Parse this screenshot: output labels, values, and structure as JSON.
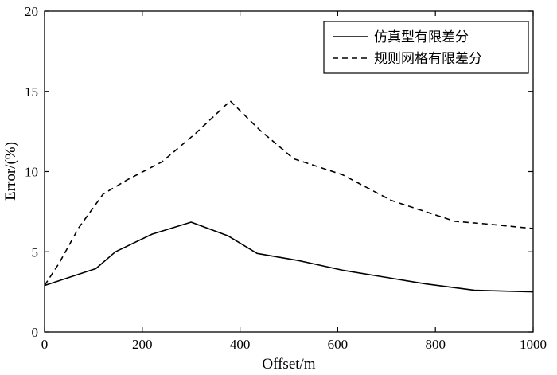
{
  "chart_data": {
    "type": "line",
    "title": "",
    "xlabel": "Offset/m",
    "ylabel": "Error/(%)",
    "xlim": [
      0,
      1000
    ],
    "ylim": [
      0,
      20
    ],
    "xticks": [
      0,
      200,
      400,
      600,
      800,
      1000
    ],
    "yticks": [
      0,
      5,
      10,
      15,
      20
    ],
    "grid": false,
    "legend_position": "top-right",
    "series": [
      {
        "name": "仿真型有限差分",
        "style": "solid",
        "color": "#000000",
        "points": [
          [
            0,
            2.9
          ],
          [
            50,
            3.4
          ],
          [
            105,
            3.95
          ],
          [
            145,
            5.0
          ],
          [
            220,
            6.1
          ],
          [
            300,
            6.85
          ],
          [
            375,
            6.0
          ],
          [
            435,
            4.9
          ],
          [
            520,
            4.45
          ],
          [
            610,
            3.85
          ],
          [
            700,
            3.4
          ],
          [
            780,
            3.0
          ],
          [
            880,
            2.6
          ],
          [
            1000,
            2.5
          ]
        ]
      },
      {
        "name": "规则网格有限差分",
        "style": "dashed",
        "color": "#000000",
        "points": [
          [
            0,
            2.9
          ],
          [
            30,
            4.3
          ],
          [
            70,
            6.5
          ],
          [
            120,
            8.6
          ],
          [
            170,
            9.5
          ],
          [
            240,
            10.6
          ],
          [
            310,
            12.4
          ],
          [
            380,
            14.4
          ],
          [
            440,
            12.6
          ],
          [
            510,
            10.8
          ],
          [
            610,
            9.8
          ],
          [
            710,
            8.2
          ],
          [
            780,
            7.5
          ],
          [
            840,
            6.9
          ],
          [
            900,
            6.75
          ],
          [
            1000,
            6.45
          ]
        ]
      }
    ]
  }
}
